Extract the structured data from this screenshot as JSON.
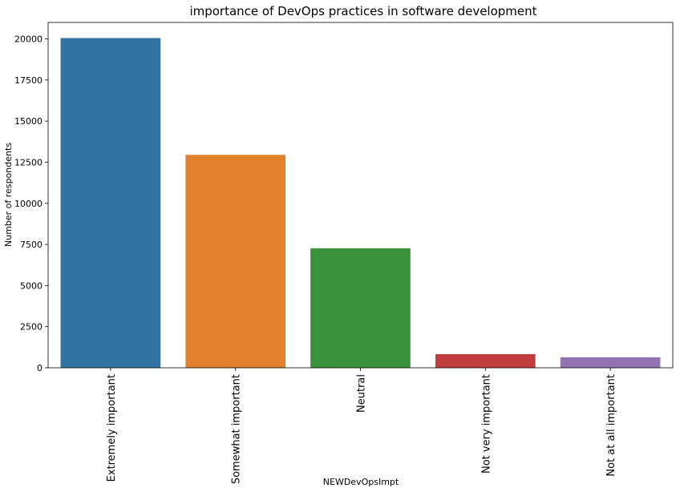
{
  "chart_data": {
    "type": "bar",
    "title": "importance of DevOps practices in software development",
    "xlabel": "NEWDevOpsImpt",
    "ylabel": "Number of respondents",
    "categories": [
      "Extremely important",
      "Somewhat important",
      "Neutral",
      "Not very important",
      "Not at all important"
    ],
    "values": [
      20050,
      12950,
      7270,
      830,
      640
    ],
    "colors": [
      "#3274a1",
      "#e1812c",
      "#3a923a",
      "#c03d3e",
      "#9372b2"
    ],
    "ylim": [
      0,
      21000
    ],
    "yticks": [
      0,
      2500,
      5000,
      7500,
      10000,
      12500,
      15000,
      17500,
      20000
    ],
    "ytick_labels": [
      "0",
      "2500",
      "5000",
      "7500",
      "10000",
      "12500",
      "15000",
      "17500",
      "20000"
    ],
    "grid": false,
    "legend": "none",
    "xtick_rotation": "vertical"
  }
}
